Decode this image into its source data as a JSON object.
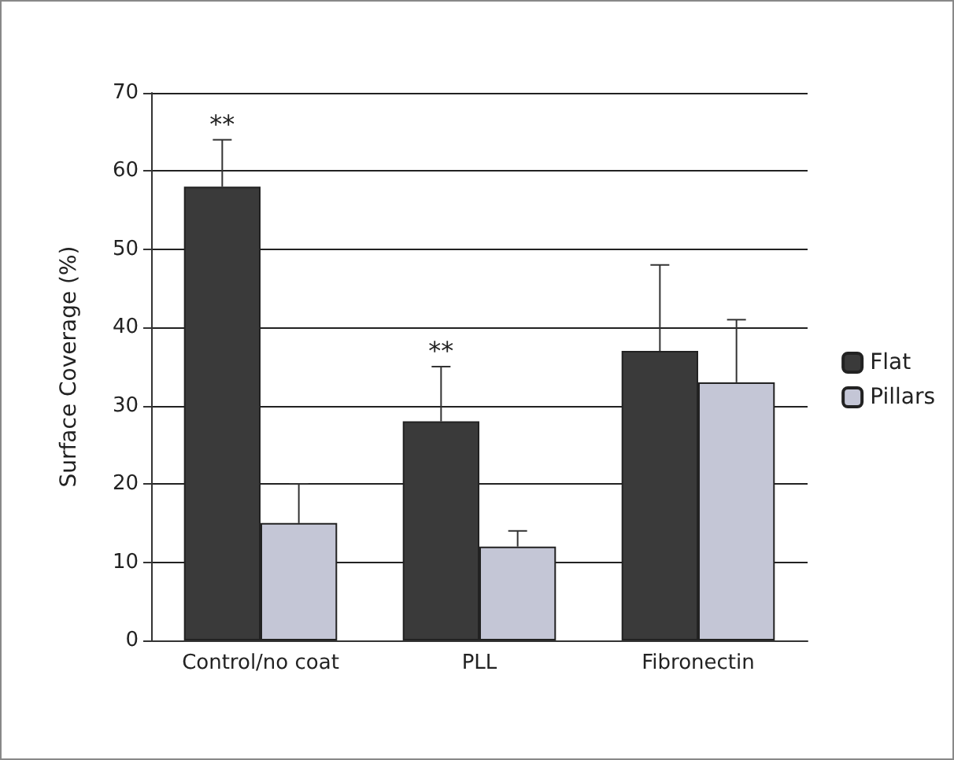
{
  "chart_data": {
    "type": "bar",
    "ylabel": "Surface Coverage (%)",
    "categories": [
      "Control/no coat",
      "PLL",
      "Fibronectin"
    ],
    "series": [
      {
        "name": "Flat",
        "color": "#3a3a3a",
        "values": [
          58,
          28,
          37
        ],
        "errors": [
          [
            58,
            64
          ],
          [
            28,
            35
          ],
          [
            37,
            48
          ]
        ]
      },
      {
        "name": "Pillars",
        "color": "#c4c6d6",
        "values": [
          15,
          12,
          33
        ],
        "errors": [
          [
            15,
            20
          ],
          [
            12,
            14
          ],
          [
            33,
            41
          ]
        ]
      }
    ],
    "ylim": [
      0,
      70
    ],
    "yticks": [
      0,
      10,
      20,
      30,
      40,
      50,
      60,
      70
    ],
    "grid": "y",
    "legend": "right",
    "annotations": [
      {
        "text": "**",
        "x": "Control/no coat",
        "y": 58
      },
      {
        "text": "**",
        "x": "PLL",
        "y": 28
      }
    ]
  }
}
